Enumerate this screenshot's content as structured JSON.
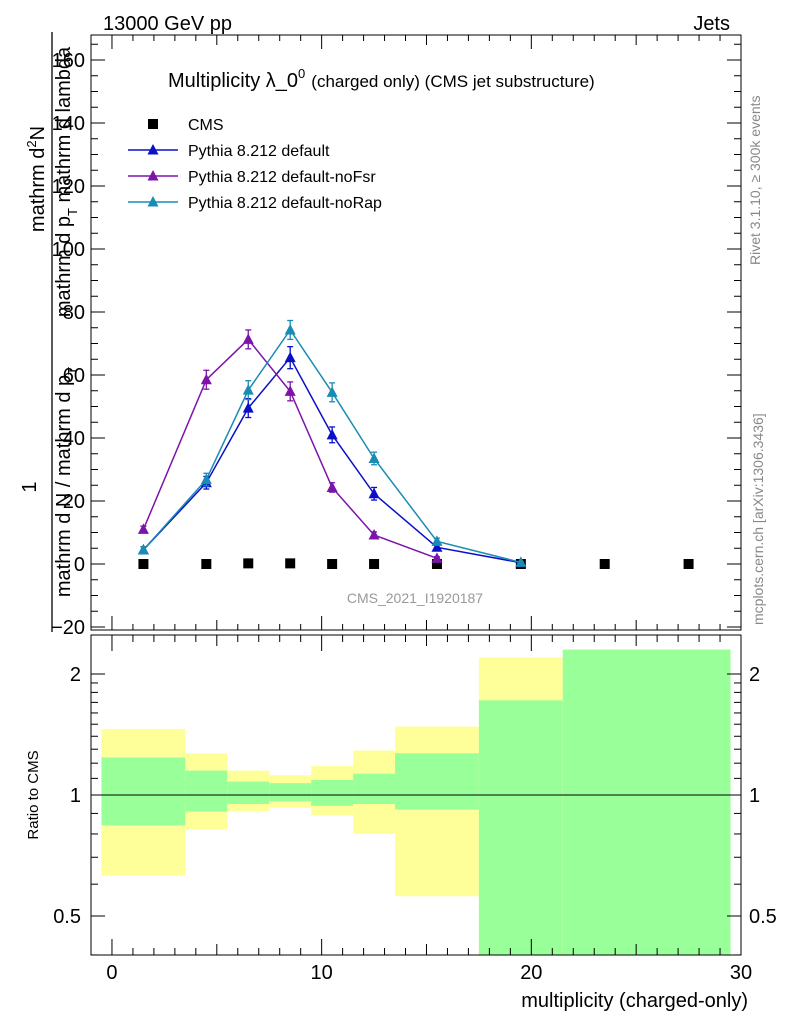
{
  "header": {
    "left": "13000 GeV pp",
    "right": "Jets"
  },
  "side_labels": {
    "rivet": "Rivet 3.1.10, ≥ 300k events",
    "mcplots": "mcplots.cern.ch [arXiv:1306.3436]"
  },
  "watermark": "CMS_2021_I1920187",
  "colors": {
    "cms": "#000000",
    "default": "#0a10c8",
    "noFsr": "#7d14aa",
    "noRap": "#1a8cb4",
    "band_inner": "#99ff99",
    "band_outer": "#ffff99"
  },
  "chart_data": [
    {
      "type": "scatter",
      "panel": "main",
      "title_main": "Multiplicity λ_0",
      "title_sup": "0",
      "title_sub": "(charged only) (CMS jet substructure)",
      "ylabel_num": "mathrm d",
      "ylabel_num_sup": "2",
      "ylabel_num_end": "N",
      "ylabel_den": "mathrm d p",
      "ylabel_den_sub": "T",
      "ylabel_den_end": " mathrm d lambda",
      "ylabel_one": "1",
      "ylabel_norm_a": "mathrm d N / mathrm d p",
      "ylabel_norm_sub": "T",
      "ylim": [
        -20,
        170
      ],
      "xlim": [
        -1,
        30
      ],
      "y_ticks": [
        -20,
        0,
        20,
        40,
        60,
        80,
        100,
        120,
        140,
        160
      ],
      "y_tick_labels": [
        "−20",
        "0",
        "20",
        "40",
        "60",
        "80",
        "100",
        "120",
        "140",
        "160"
      ],
      "legend_position": "top-left",
      "series": [
        {
          "name": "CMS",
          "key": "cms",
          "marker": "square",
          "line": false,
          "x": [
            1.5,
            4.5,
            6.5,
            8.5,
            10.5,
            12.5,
            15.5,
            19.5,
            23.5,
            27.5
          ],
          "y": [
            0,
            0,
            0.2,
            0.2,
            0,
            0,
            0,
            0,
            0,
            0
          ],
          "err": [
            0,
            0,
            0,
            0,
            0,
            0,
            0,
            0,
            0,
            0
          ]
        },
        {
          "name": "Pythia 8.212 default",
          "key": "default",
          "marker": "triangle",
          "line": true,
          "x": [
            1.5,
            4.5,
            6.5,
            8.5,
            10.5,
            12.5,
            15.5,
            19.5
          ],
          "y": [
            4.5,
            25.8,
            49.5,
            65.5,
            41,
            22.3,
            5.3,
            0.4
          ],
          "err": [
            1.0,
            2.0,
            3.0,
            3.5,
            2.5,
            2.0,
            1.0,
            0.2
          ]
        },
        {
          "name": "Pythia 8.212 default-noFsr",
          "key": "noFsr",
          "marker": "triangle",
          "line": true,
          "x": [
            1.5,
            4.5,
            6.5,
            8.5,
            10.5,
            12.5,
            15.5
          ],
          "y": [
            11,
            58.5,
            71.3,
            54.8,
            24.3,
            9.2,
            1.8
          ],
          "err": [
            1.0,
            3.0,
            3.0,
            3.0,
            1.5,
            1.0,
            0.5
          ]
        },
        {
          "name": "Pythia 8.212 default-noRap",
          "key": "noRap",
          "marker": "triangle",
          "line": true,
          "x": [
            1.5,
            4.5,
            6.5,
            8.5,
            10.5,
            12.5,
            15.5,
            19.5
          ],
          "y": [
            4.5,
            26.8,
            55.2,
            74.3,
            54.5,
            33.5,
            7.2,
            0.5
          ],
          "err": [
            1.0,
            2.0,
            3.0,
            3.0,
            3.0,
            2.0,
            1.0,
            0.2
          ]
        }
      ]
    },
    {
      "type": "area",
      "panel": "ratio",
      "ylabel": "Ratio to CMS",
      "xlabel": "multiplicity (charged-only)",
      "y_scale": "log",
      "ylim": [
        0.38,
        2.3
      ],
      "xlim": [
        -1,
        30
      ],
      "x_ticks": [
        0,
        10,
        20,
        30
      ],
      "x_tick_labels": [
        "0",
        "10",
        "20",
        "30"
      ],
      "y_ticks": [
        0.5,
        1,
        2
      ],
      "y_tick_labels": [
        "0.5",
        "1",
        "2"
      ],
      "reference_line": 1,
      "bins": [
        -0.5,
        3.5,
        5.5,
        7.5,
        9.5,
        11.5,
        13.5,
        17.5,
        21.5,
        29.5
      ],
      "inner_band": {
        "low": [
          0.84,
          0.91,
          0.95,
          0.965,
          0.94,
          0.95,
          0.92,
          0.38,
          0.38
        ],
        "high": [
          1.24,
          1.15,
          1.08,
          1.07,
          1.09,
          1.13,
          1.27,
          1.72,
          2.3
        ]
      },
      "outer_band": {
        "low": [
          0.63,
          0.82,
          0.91,
          0.93,
          0.89,
          0.8,
          0.56,
          0.38,
          0.38
        ],
        "high": [
          1.46,
          1.27,
          1.15,
          1.12,
          1.18,
          1.29,
          1.48,
          2.2,
          2.3
        ]
      }
    }
  ]
}
